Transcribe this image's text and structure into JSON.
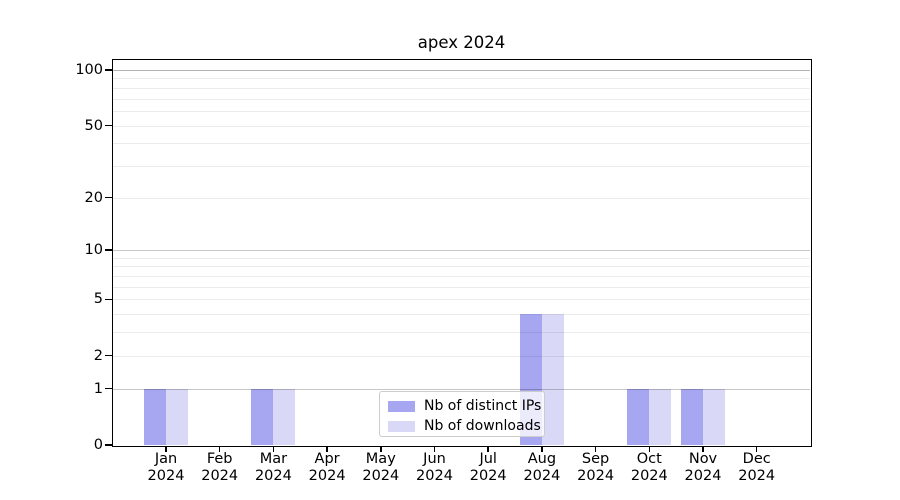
{
  "chart_data": {
    "type": "bar",
    "title": "apex 2024",
    "categories": [
      "Jan\n2024",
      "Feb\n2024",
      "Mar\n2024",
      "Apr\n2024",
      "May\n2024",
      "Jun\n2024",
      "Jul\n2024",
      "Aug\n2024",
      "Sep\n2024",
      "Oct\n2024",
      "Nov\n2024",
      "Dec\n2024"
    ],
    "series": [
      {
        "name": "Nb of distinct IPs",
        "color": "#a6a6f1",
        "values": [
          1,
          0,
          1,
          0,
          0,
          0,
          0,
          4,
          0,
          1,
          1,
          0
        ]
      },
      {
        "name": "Nb of downloads",
        "color": "#d9d9f7",
        "values": [
          1,
          0,
          1,
          0,
          0,
          0,
          0,
          4,
          0,
          1,
          1,
          0
        ]
      }
    ],
    "y_axis": {
      "scale": "log1p",
      "ticks": [
        0,
        1,
        2,
        5,
        10,
        20,
        50,
        100
      ],
      "major_gridlines": [
        1,
        10,
        100
      ],
      "minor_gridlines": [
        2,
        3,
        4,
        5,
        6,
        7,
        8,
        9,
        20,
        30,
        40,
        50,
        60,
        70,
        80,
        90
      ],
      "ylim": [
        0,
        113
      ]
    },
    "x_axis": {
      "label_year": "2024"
    },
    "grid": true,
    "legend_position": "lower center inside plot",
    "colors": {
      "bar_distinct_ips": "#a6a6f1",
      "bar_downloads": "#d9d9f7",
      "major_grid": "#bdbdbd",
      "minor_grid": "#ebebeb",
      "axis": "#000000",
      "legend_border": "#cccccc"
    }
  }
}
